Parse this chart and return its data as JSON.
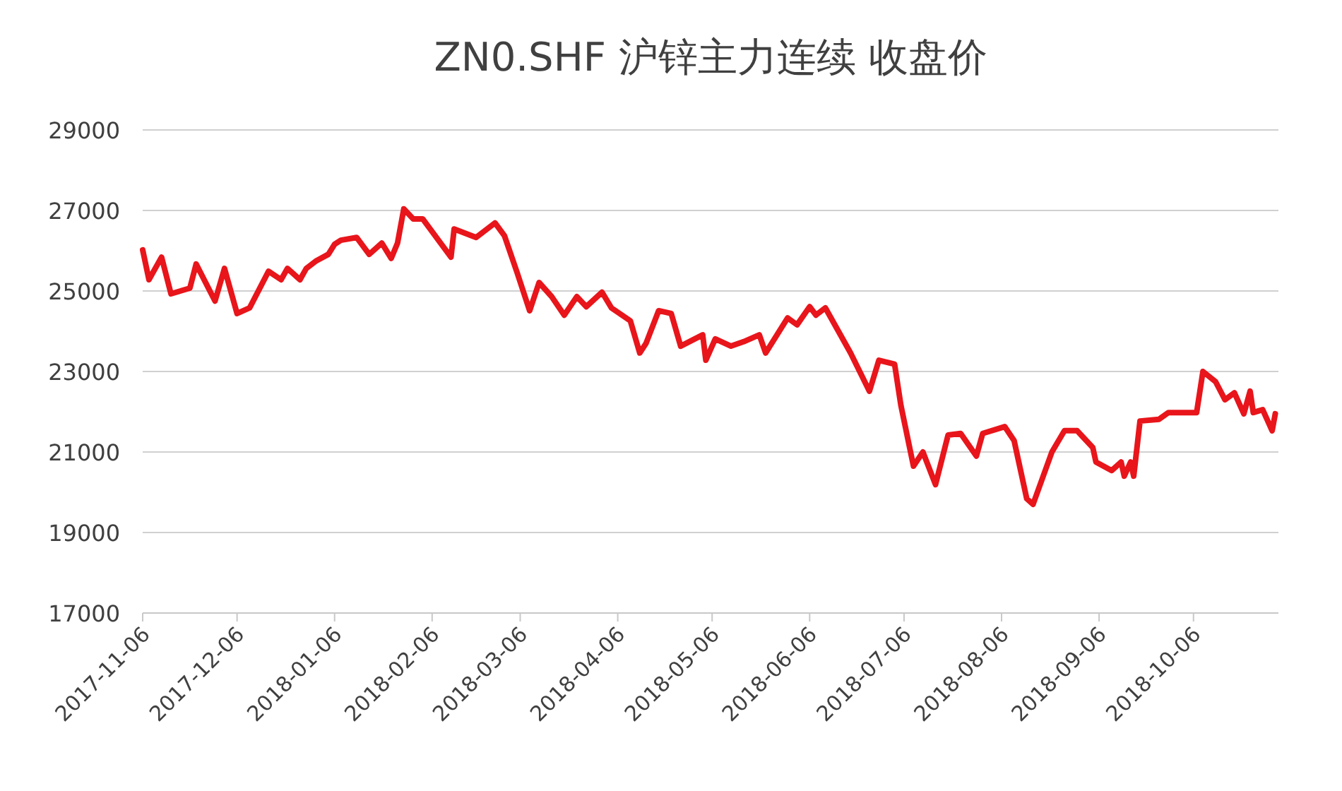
{
  "chart_data": {
    "type": "line",
    "title": "ZN0.SHF 沪锌主力连续 收盘价",
    "x": [
      "2017-11-06",
      "2017-11-08",
      "2017-11-12",
      "2017-11-15",
      "2017-11-21",
      "2017-11-23",
      "2017-11-29",
      "2017-12-02",
      "2017-12-06",
      "2017-12-10",
      "2017-12-16",
      "2017-12-20",
      "2017-12-22",
      "2017-12-26",
      "2017-12-28",
      "2017-12-31",
      "2018-01-04",
      "2018-01-06",
      "2018-01-08",
      "2018-01-13",
      "2018-01-17",
      "2018-01-21",
      "2018-01-24",
      "2018-01-26",
      "2018-01-28",
      "2018-01-31",
      "2018-02-03",
      "2018-02-12",
      "2018-02-13",
      "2018-02-20",
      "2018-02-26",
      "2018-03-01",
      "2018-03-05",
      "2018-03-09",
      "2018-03-12",
      "2018-03-16",
      "2018-03-20",
      "2018-03-24",
      "2018-03-27",
      "2018-04-01",
      "2018-04-04",
      "2018-04-10",
      "2018-04-13",
      "2018-04-15",
      "2018-04-19",
      "2018-04-23",
      "2018-04-26",
      "2018-05-03",
      "2018-05-04",
      "2018-05-07",
      "2018-05-12",
      "2018-05-16",
      "2018-05-21",
      "2018-05-23",
      "2018-05-30",
      "2018-06-02",
      "2018-06-06",
      "2018-06-08",
      "2018-06-11",
      "2018-06-19",
      "2018-06-25",
      "2018-06-28",
      "2018-07-03",
      "2018-07-05",
      "2018-07-09",
      "2018-07-12",
      "2018-07-16",
      "2018-07-20",
      "2018-07-24",
      "2018-07-29",
      "2018-07-31",
      "2018-08-07",
      "2018-08-10",
      "2018-08-14",
      "2018-08-16",
      "2018-08-22",
      "2018-08-26",
      "2018-08-30",
      "2018-09-04",
      "2018-09-05",
      "2018-09-10",
      "2018-09-13",
      "2018-09-14",
      "2018-09-16",
      "2018-09-17",
      "2018-09-19",
      "2018-09-25",
      "2018-09-28",
      "2018-10-07",
      "2018-10-09",
      "2018-10-13",
      "2018-10-16",
      "2018-10-19",
      "2018-10-22",
      "2018-10-24",
      "2018-10-25",
      "2018-10-28",
      "2018-10-31",
      "2018-11-01"
    ],
    "series": [
      {
        "color": "#e8151b",
        "values": [
          26020,
          25280,
          25840,
          24930,
          25070,
          25670,
          24750,
          25560,
          24440,
          24580,
          25490,
          25280,
          25560,
          25280,
          25560,
          25740,
          25910,
          26160,
          26260,
          26330,
          25910,
          26190,
          25810,
          26190,
          27040,
          26790,
          26790,
          25840,
          26540,
          26330,
          26690,
          26370,
          25460,
          24510,
          25210,
          24860,
          24400,
          24860,
          24610,
          24970,
          24580,
          24260,
          23460,
          23700,
          24510,
          24440,
          23630,
          23910,
          23280,
          23810,
          23630,
          23740,
          23910,
          23460,
          24330,
          24160,
          24610,
          24400,
          24580,
          23460,
          22510,
          23280,
          23180,
          22160,
          20650,
          21000,
          20190,
          21420,
          21460,
          20900,
          21460,
          21630,
          21280,
          19840,
          19700,
          21000,
          21530,
          21530,
          21110,
          20750,
          20540,
          20750,
          20400,
          20750,
          20400,
          21770,
          21810,
          21980,
          21980,
          23000,
          22750,
          22300,
          22470,
          21950,
          22510,
          21980,
          22050,
          21530,
          21950
        ]
      }
    ],
    "xlim": [
      "2017-11-06",
      "2018-11-02"
    ],
    "xticks": [
      "2017-11-06",
      "2017-12-06",
      "2018-01-06",
      "2018-02-06",
      "2018-03-06",
      "2018-04-06",
      "2018-05-06",
      "2018-06-06",
      "2018-07-06",
      "2018-08-06",
      "2018-09-06",
      "2018-10-06"
    ],
    "ylim": [
      17000,
      29000
    ],
    "yticks": [
      17000,
      19000,
      21000,
      23000,
      25000,
      27000,
      29000
    ],
    "grid": "y",
    "line_style": "solid"
  }
}
